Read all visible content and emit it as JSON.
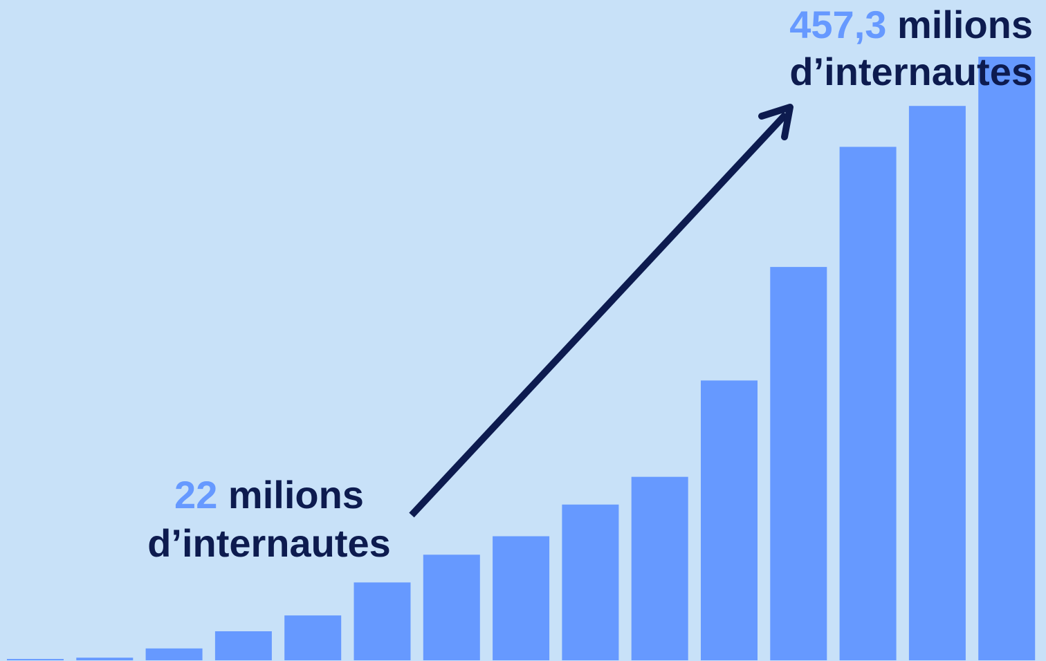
{
  "chart_data": {
    "type": "bar",
    "values": [
      1,
      2,
      9,
      22,
      34,
      59,
      80,
      94,
      118,
      139,
      212,
      298,
      389,
      420,
      457.3
    ],
    "color": "#6699ff",
    "annotations": [
      {
        "highlight": "22",
        "text": "milions",
        "line2": "d’internautes"
      },
      {
        "highlight": "457,3",
        "text": "milions",
        "line2": "d’internautes"
      }
    ]
  }
}
